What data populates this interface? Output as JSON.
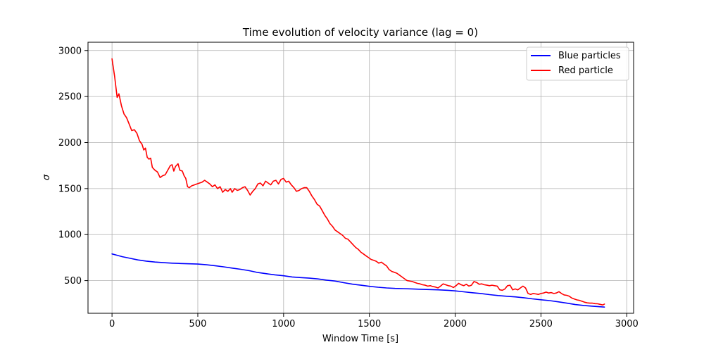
{
  "chart_data": {
    "type": "line",
    "title": "Time evolution of velocity variance (lag = 0)",
    "xlabel": "Window Time [s]",
    "ylabel": "σ",
    "xlim": [
      -140,
      3040
    ],
    "ylim": [
      145,
      3090
    ],
    "xticks": [
      0,
      500,
      1000,
      1500,
      2000,
      2500,
      3000
    ],
    "yticks": [
      500,
      1000,
      1500,
      2000,
      2500,
      3000
    ],
    "grid": true,
    "legend_position": "top-right",
    "series": [
      {
        "name": "Blue particles",
        "color": "#0000ff",
        "points": [
          [
            0,
            790
          ],
          [
            30,
            775
          ],
          [
            60,
            760
          ],
          [
            100,
            745
          ],
          [
            150,
            725
          ],
          [
            200,
            712
          ],
          [
            250,
            702
          ],
          [
            300,
            695
          ],
          [
            350,
            690
          ],
          [
            400,
            686
          ],
          [
            450,
            683
          ],
          [
            500,
            680
          ],
          [
            550,
            672
          ],
          [
            600,
            662
          ],
          [
            650,
            650
          ],
          [
            700,
            636
          ],
          [
            750,
            623
          ],
          [
            800,
            608
          ],
          [
            850,
            588
          ],
          [
            900,
            575
          ],
          [
            950,
            563
          ],
          [
            1000,
            553
          ],
          [
            1050,
            540
          ],
          [
            1100,
            533
          ],
          [
            1150,
            527
          ],
          [
            1200,
            518
          ],
          [
            1250,
            505
          ],
          [
            1300,
            495
          ],
          [
            1350,
            478
          ],
          [
            1400,
            462
          ],
          [
            1450,
            450
          ],
          [
            1500,
            438
          ],
          [
            1550,
            428
          ],
          [
            1600,
            420
          ],
          [
            1650,
            415
          ],
          [
            1700,
            413
          ],
          [
            1750,
            410
          ],
          [
            1800,
            406
          ],
          [
            1850,
            403
          ],
          [
            1900,
            400
          ],
          [
            1950,
            395
          ],
          [
            2000,
            388
          ],
          [
            2050,
            378
          ],
          [
            2100,
            368
          ],
          [
            2150,
            360
          ],
          [
            2200,
            348
          ],
          [
            2250,
            338
          ],
          [
            2300,
            330
          ],
          [
            2350,
            323
          ],
          [
            2400,
            314
          ],
          [
            2450,
            302
          ],
          [
            2500,
            292
          ],
          [
            2550,
            283
          ],
          [
            2600,
            270
          ],
          [
            2650,
            255
          ],
          [
            2700,
            240
          ],
          [
            2750,
            230
          ],
          [
            2800,
            222
          ],
          [
            2850,
            215
          ],
          [
            2870,
            212
          ]
        ]
      },
      {
        "name": "Red particle",
        "color": "#ff0000",
        "points": [
          [
            0,
            2910
          ],
          [
            15,
            2720
          ],
          [
            30,
            2490
          ],
          [
            40,
            2530
          ],
          [
            55,
            2400
          ],
          [
            70,
            2310
          ],
          [
            85,
            2270
          ],
          [
            100,
            2200
          ],
          [
            115,
            2130
          ],
          [
            130,
            2140
          ],
          [
            145,
            2100
          ],
          [
            160,
            2020
          ],
          [
            175,
            1980
          ],
          [
            185,
            1920
          ],
          [
            195,
            1940
          ],
          [
            205,
            1840
          ],
          [
            215,
            1820
          ],
          [
            225,
            1830
          ],
          [
            235,
            1730
          ],
          [
            250,
            1700
          ],
          [
            265,
            1680
          ],
          [
            280,
            1620
          ],
          [
            295,
            1640
          ],
          [
            310,
            1650
          ],
          [
            325,
            1700
          ],
          [
            340,
            1750
          ],
          [
            350,
            1760
          ],
          [
            360,
            1690
          ],
          [
            370,
            1740
          ],
          [
            385,
            1770
          ],
          [
            395,
            1700
          ],
          [
            410,
            1690
          ],
          [
            420,
            1640
          ],
          [
            430,
            1610
          ],
          [
            440,
            1520
          ],
          [
            450,
            1510
          ],
          [
            465,
            1530
          ],
          [
            480,
            1540
          ],
          [
            495,
            1550
          ],
          [
            510,
            1560
          ],
          [
            525,
            1570
          ],
          [
            540,
            1590
          ],
          [
            555,
            1570
          ],
          [
            570,
            1550
          ],
          [
            585,
            1520
          ],
          [
            600,
            1540
          ],
          [
            615,
            1500
          ],
          [
            630,
            1520
          ],
          [
            645,
            1460
          ],
          [
            660,
            1490
          ],
          [
            675,
            1470
          ],
          [
            690,
            1500
          ],
          [
            700,
            1460
          ],
          [
            715,
            1500
          ],
          [
            730,
            1480
          ],
          [
            745,
            1490
          ],
          [
            760,
            1510
          ],
          [
            775,
            1520
          ],
          [
            790,
            1480
          ],
          [
            805,
            1430
          ],
          [
            820,
            1470
          ],
          [
            835,
            1500
          ],
          [
            850,
            1550
          ],
          [
            865,
            1560
          ],
          [
            880,
            1530
          ],
          [
            895,
            1580
          ],
          [
            910,
            1560
          ],
          [
            925,
            1540
          ],
          [
            940,
            1580
          ],
          [
            955,
            1590
          ],
          [
            970,
            1550
          ],
          [
            985,
            1600
          ],
          [
            1000,
            1610
          ],
          [
            1015,
            1570
          ],
          [
            1030,
            1580
          ],
          [
            1045,
            1540
          ],
          [
            1060,
            1510
          ],
          [
            1075,
            1470
          ],
          [
            1090,
            1480
          ],
          [
            1105,
            1500
          ],
          [
            1120,
            1510
          ],
          [
            1135,
            1510
          ],
          [
            1150,
            1470
          ],
          [
            1165,
            1420
          ],
          [
            1180,
            1380
          ],
          [
            1195,
            1330
          ],
          [
            1210,
            1310
          ],
          [
            1225,
            1260
          ],
          [
            1240,
            1210
          ],
          [
            1255,
            1170
          ],
          [
            1270,
            1120
          ],
          [
            1285,
            1090
          ],
          [
            1300,
            1050
          ],
          [
            1315,
            1030
          ],
          [
            1330,
            1010
          ],
          [
            1345,
            990
          ],
          [
            1360,
            960
          ],
          [
            1375,
            950
          ],
          [
            1390,
            920
          ],
          [
            1405,
            890
          ],
          [
            1420,
            860
          ],
          [
            1435,
            840
          ],
          [
            1450,
            810
          ],
          [
            1465,
            790
          ],
          [
            1480,
            770
          ],
          [
            1495,
            750
          ],
          [
            1510,
            730
          ],
          [
            1525,
            720
          ],
          [
            1540,
            710
          ],
          [
            1555,
            690
          ],
          [
            1570,
            700
          ],
          [
            1585,
            680
          ],
          [
            1600,
            660
          ],
          [
            1615,
            620
          ],
          [
            1630,
            600
          ],
          [
            1645,
            590
          ],
          [
            1660,
            580
          ],
          [
            1675,
            560
          ],
          [
            1690,
            540
          ],
          [
            1705,
            520
          ],
          [
            1720,
            500
          ],
          [
            1735,
            495
          ],
          [
            1750,
            490
          ],
          [
            1765,
            480
          ],
          [
            1780,
            470
          ],
          [
            1795,
            465
          ],
          [
            1810,
            455
          ],
          [
            1825,
            450
          ],
          [
            1840,
            440
          ],
          [
            1855,
            445
          ],
          [
            1870,
            435
          ],
          [
            1885,
            430
          ],
          [
            1900,
            420
          ],
          [
            1915,
            440
          ],
          [
            1930,
            465
          ],
          [
            1945,
            455
          ],
          [
            1960,
            445
          ],
          [
            1975,
            440
          ],
          [
            1990,
            425
          ],
          [
            2005,
            445
          ],
          [
            2020,
            470
          ],
          [
            2035,
            455
          ],
          [
            2050,
            445
          ],
          [
            2065,
            460
          ],
          [
            2080,
            440
          ],
          [
            2095,
            450
          ],
          [
            2110,
            490
          ],
          [
            2125,
            480
          ],
          [
            2140,
            460
          ],
          [
            2155,
            465
          ],
          [
            2170,
            455
          ],
          [
            2185,
            450
          ],
          [
            2200,
            445
          ],
          [
            2215,
            450
          ],
          [
            2230,
            445
          ],
          [
            2245,
            440
          ],
          [
            2260,
            400
          ],
          [
            2275,
            395
          ],
          [
            2290,
            410
          ],
          [
            2305,
            445
          ],
          [
            2320,
            450
          ],
          [
            2335,
            400
          ],
          [
            2350,
            410
          ],
          [
            2365,
            400
          ],
          [
            2380,
            420
          ],
          [
            2395,
            440
          ],
          [
            2410,
            420
          ],
          [
            2425,
            360
          ],
          [
            2440,
            350
          ],
          [
            2455,
            360
          ],
          [
            2470,
            355
          ],
          [
            2485,
            350
          ],
          [
            2500,
            360
          ],
          [
            2515,
            365
          ],
          [
            2530,
            375
          ],
          [
            2545,
            365
          ],
          [
            2560,
            370
          ],
          [
            2575,
            360
          ],
          [
            2590,
            365
          ],
          [
            2605,
            380
          ],
          [
            2620,
            360
          ],
          [
            2635,
            345
          ],
          [
            2650,
            340
          ],
          [
            2665,
            330
          ],
          [
            2680,
            310
          ],
          [
            2695,
            300
          ],
          [
            2710,
            290
          ],
          [
            2725,
            285
          ],
          [
            2740,
            275
          ],
          [
            2755,
            265
          ],
          [
            2770,
            258
          ],
          [
            2785,
            255
          ],
          [
            2800,
            255
          ],
          [
            2815,
            250
          ],
          [
            2830,
            248
          ],
          [
            2845,
            242
          ],
          [
            2860,
            235
          ],
          [
            2870,
            245
          ]
        ]
      }
    ]
  }
}
